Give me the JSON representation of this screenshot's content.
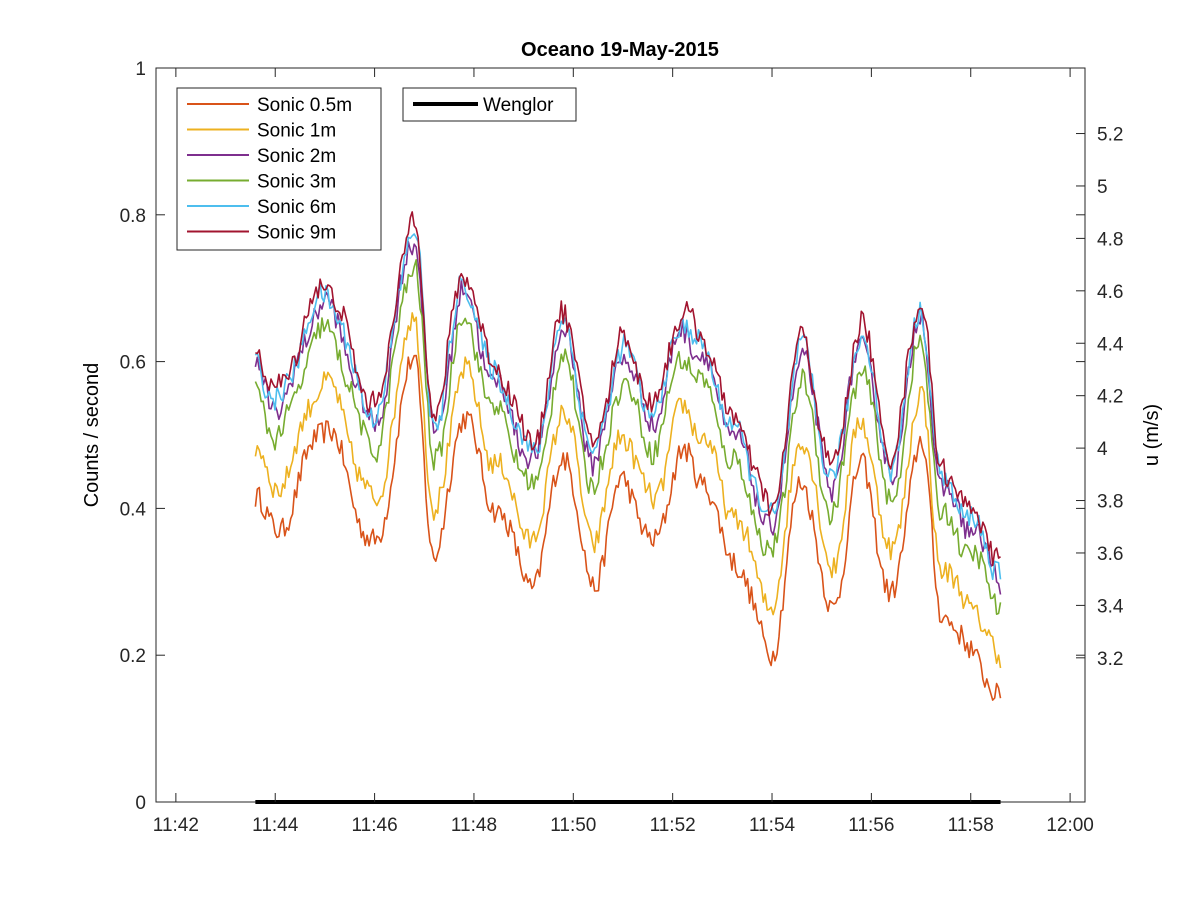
{
  "chart_data": {
    "type": "line",
    "title": "Oceano 19-May-2015",
    "ylabel_left": "Counts / second",
    "ylabel_right": "u (m/s)",
    "x_ticks": [
      "11:42",
      "11:44",
      "11:46",
      "11:48",
      "11:50",
      "11:52",
      "11:54",
      "11:56",
      "11:58",
      "12:00"
    ],
    "x_range_minutes": [
      11.7,
      12.1
    ],
    "y_left_ticks": [
      "0",
      "0.2",
      "0.4",
      "0.6",
      "0.8",
      "1"
    ],
    "y_left_range": [
      0,
      1
    ],
    "y_right_ticks": [
      "3.2",
      "3.4",
      "3.6",
      "3.8",
      "4",
      "4.2",
      "4.4",
      "4.6",
      "4.8",
      "5",
      "5.2"
    ],
    "y_right_range": [
      2.65,
      5.45
    ],
    "legend_sonic": [
      "Sonic 0.5m",
      "Sonic 1m",
      "Sonic 2m",
      "Sonic 3m",
      "Sonic 6m",
      "Sonic 9m"
    ],
    "legend_wenglor": "Wenglor",
    "colors": {
      "Sonic 0.5m": "#D95319",
      "Sonic 1m": "#EDB120",
      "Sonic 2m": "#7E2F8E",
      "Sonic 3m": "#77AC30",
      "Sonic 6m": "#4DBEEE",
      "Sonic 9m": "#A2142F",
      "Wenglor": "#000000"
    },
    "wenglor": {
      "t_start": "11:43:36",
      "t_end": "11:58:36",
      "value": 0
    },
    "sonic_series_envelope": {
      "t": [
        "11:43:36",
        "11:44:00",
        "11:45:00",
        "11:46:00",
        "11:46:48",
        "11:47:12",
        "11:47:48",
        "11:48:24",
        "11:49:12",
        "11:49:48",
        "11:50:24",
        "11:51:00",
        "11:51:36",
        "11:52:12",
        "11:52:36",
        "11:53:12",
        "11:54:00",
        "11:54:36",
        "11:55:12",
        "11:55:48",
        "11:56:24",
        "11:57:00",
        "11:57:24",
        "11:58:00",
        "11:58:36"
      ],
      "u_base": [
        4.25,
        4.1,
        4.5,
        4.05,
        4.75,
        4.0,
        4.55,
        4.2,
        3.9,
        4.4,
        3.9,
        4.3,
        4.05,
        4.4,
        4.3,
        4.0,
        3.65,
        4.3,
        3.8,
        4.35,
        3.85,
        4.45,
        3.8,
        3.65,
        3.45
      ]
    }
  }
}
